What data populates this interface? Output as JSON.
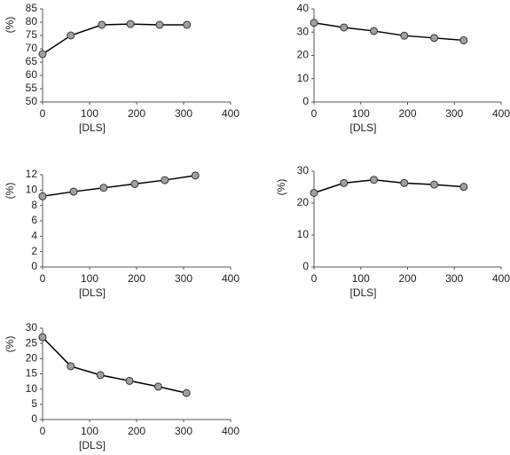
{
  "chart_data": [
    {
      "type": "line",
      "xlabel": "[DLS]",
      "ylabel": "(%)",
      "x": [
        0,
        60,
        126,
        187,
        249,
        307
      ],
      "values": [
        68,
        75,
        79,
        79.3,
        79,
        79
      ],
      "xlim": [
        0,
        400
      ],
      "ylim": [
        50,
        85
      ],
      "xticks": [
        0,
        100,
        200,
        300,
        400
      ],
      "yticks": [
        50,
        55,
        60,
        65,
        70,
        75,
        80,
        85
      ],
      "color": "#000000",
      "marker_color": "#a0a0a0"
    },
    {
      "type": "line",
      "xlabel": "[DLS]",
      "x": [
        0,
        64,
        128,
        193,
        257,
        320
      ],
      "values": [
        34,
        32,
        30.5,
        28.5,
        27.5,
        26.5
      ],
      "xlim": [
        0,
        400
      ],
      "ylim": [
        0,
        40
      ],
      "xticks": [
        0,
        100,
        200,
        300,
        400
      ],
      "yticks": [
        0,
        10,
        20,
        30,
        40
      ],
      "color": "#000000",
      "marker_color": "#a0a0a0"
    },
    {
      "type": "line",
      "xlabel": "[DLS]",
      "ylabel": "(%)",
      "x": [
        0,
        66,
        130,
        196,
        260,
        325
      ],
      "values": [
        9.2,
        9.8,
        10.3,
        10.8,
        11.3,
        11.9
      ],
      "xlim": [
        0,
        400
      ],
      "ylim": [
        0,
        12
      ],
      "xticks": [
        0,
        100,
        200,
        300,
        400
      ],
      "yticks": [
        0,
        2,
        4,
        6,
        8,
        10,
        12
      ],
      "color": "#000000",
      "marker_color": "#a0a0a0"
    },
    {
      "type": "line",
      "xlabel": "[DLS]",
      "ylabel": "(%)",
      "x": [
        0,
        64,
        128,
        193,
        257,
        320
      ],
      "values": [
        23.2,
        26.3,
        27.3,
        26.3,
        25.8,
        25.1
      ],
      "xlim": [
        0,
        400
      ],
      "ylim": [
        0,
        30
      ],
      "xticks": [
        0,
        100,
        200,
        300,
        400
      ],
      "yticks": [
        0,
        10,
        20,
        30
      ],
      "color": "#000000",
      "marker_color": "#a0a0a0"
    },
    {
      "type": "line",
      "xlabel": "[DLS]",
      "ylabel": "(%)",
      "x": [
        0,
        60,
        123,
        185,
        246,
        306
      ],
      "values": [
        27,
        17.5,
        14.6,
        12.7,
        10.8,
        8.7
      ],
      "xlim": [
        0,
        400
      ],
      "ylim": [
        0,
        30
      ],
      "xticks": [
        0,
        100,
        200,
        300,
        400
      ],
      "yticks": [
        0,
        5,
        10,
        15,
        20,
        25,
        30
      ],
      "color": "#000000",
      "marker_color": "#a0a0a0"
    }
  ]
}
